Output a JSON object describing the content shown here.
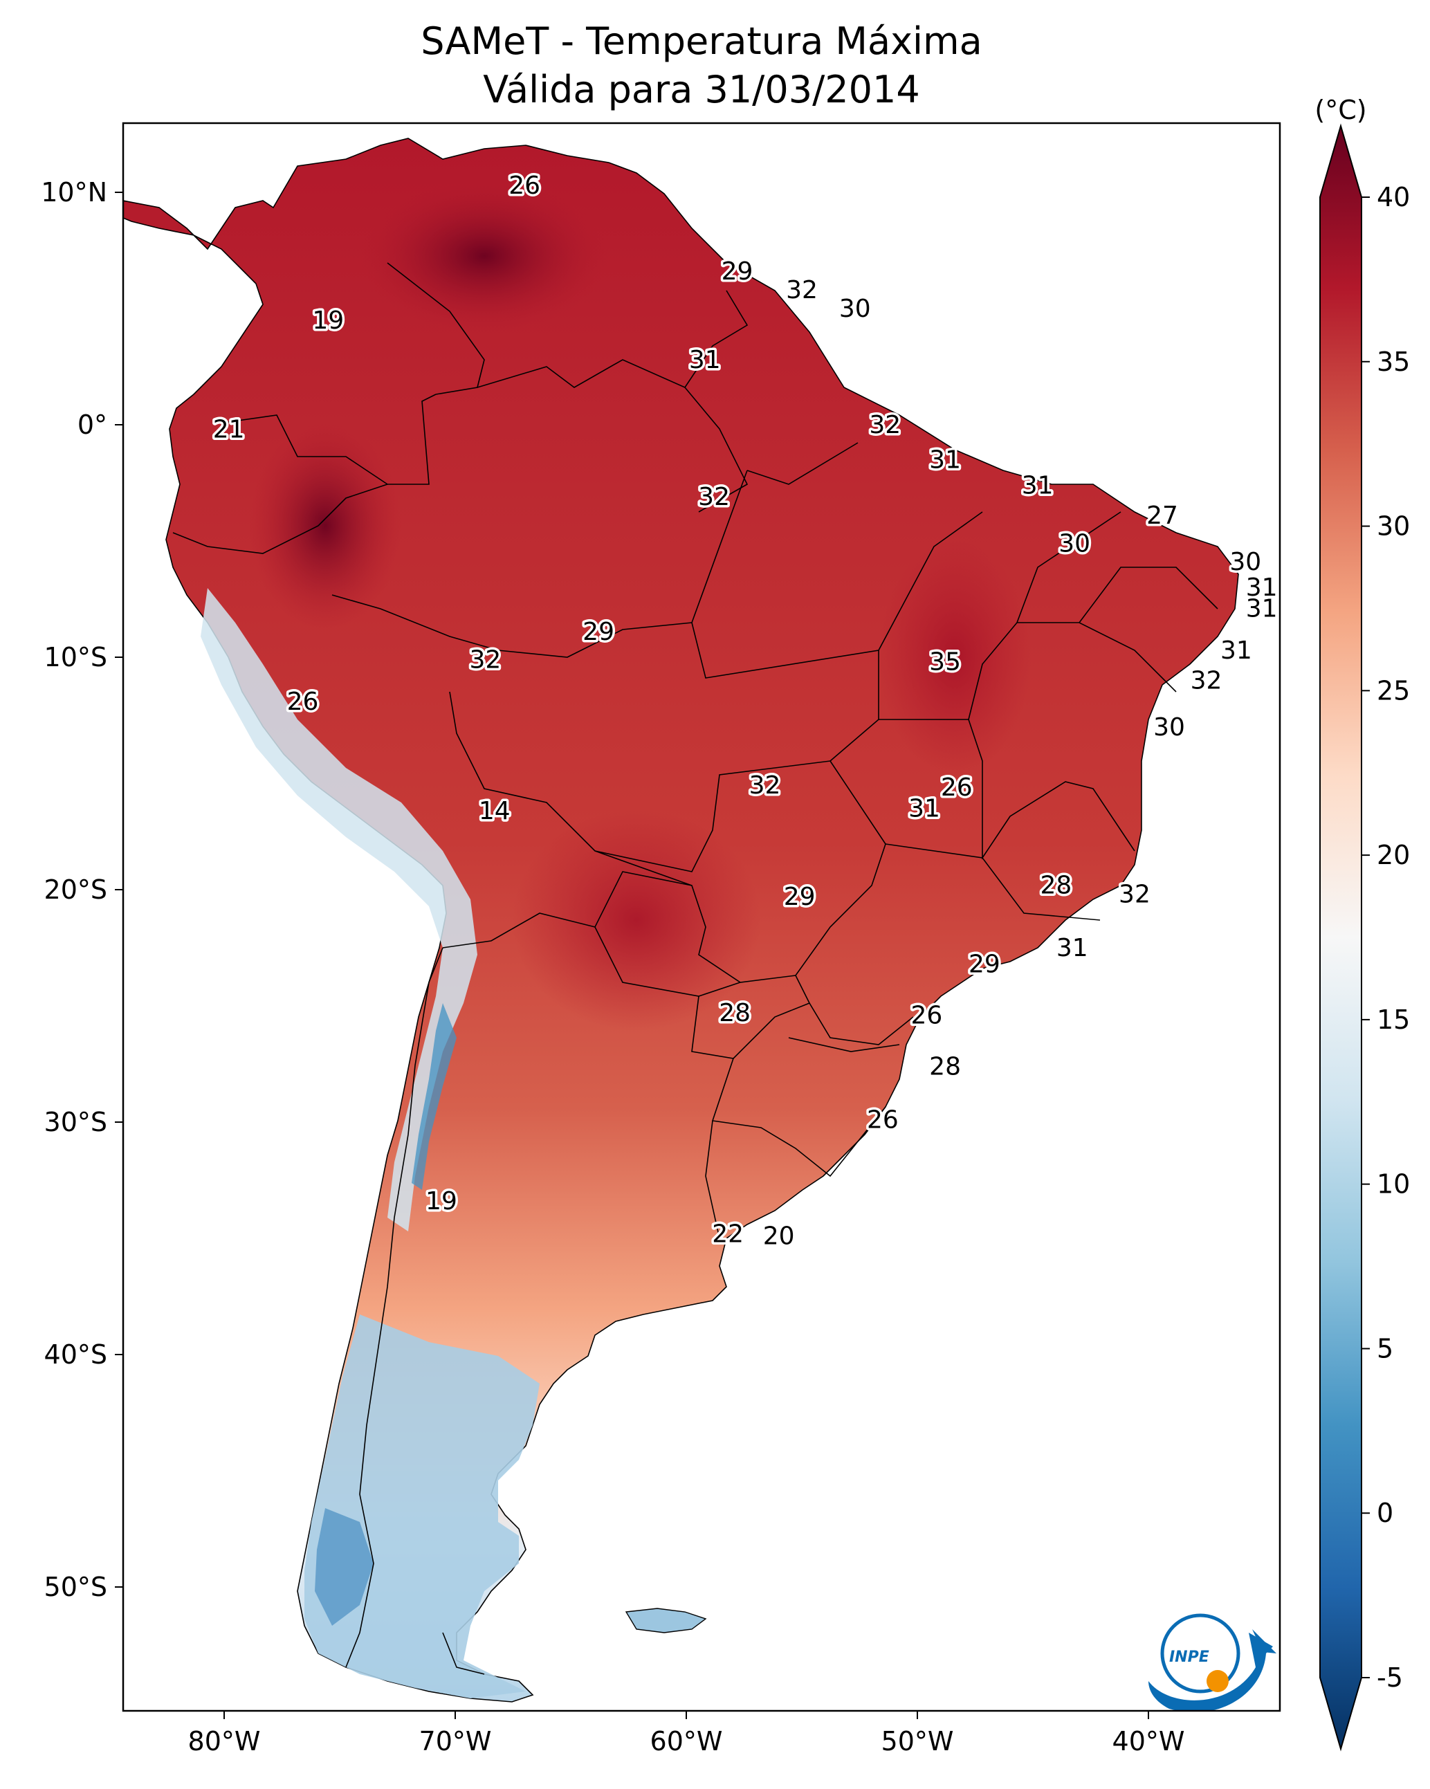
{
  "title": {
    "line1": "SAMeT - Temperatura Máxima",
    "line2": "Válida para 31/03/2014"
  },
  "colorbar": {
    "unit": "(°C)",
    "min": -5,
    "max": 40,
    "ticks": [
      "40",
      "35",
      "30",
      "25",
      "20",
      "15",
      "10",
      "5",
      "0",
      "-5"
    ],
    "colormap": "RdBu_r",
    "colors": [
      "#053061",
      "#2166ac",
      "#4393c3",
      "#92c5de",
      "#d1e5f0",
      "#f7f7f7",
      "#fddbc7",
      "#f4a582",
      "#d6604d",
      "#b2182b",
      "#67001f"
    ]
  },
  "axes": {
    "lat_ticks": [
      "10°N",
      "0°",
      "10°S",
      "20°S",
      "30°S",
      "40°S",
      "50°S"
    ],
    "lon_ticks": [
      "80°W",
      "70°W",
      "60°W",
      "50°W",
      "40°W"
    ]
  },
  "logo": {
    "text": "INPE",
    "colors": {
      "blue": "#0a6cb4",
      "orange": "#f39200"
    }
  },
  "map_labels": [
    {
      "value": "26",
      "lon": -67.0,
      "lat": 10.3
    },
    {
      "value": "29",
      "lon": -57.8,
      "lat": 6.6
    },
    {
      "value": "32",
      "lon": -55.0,
      "lat": 5.8
    },
    {
      "value": "30",
      "lon": -52.7,
      "lat": 5.0
    },
    {
      "value": "19",
      "lon": -75.5,
      "lat": 4.5
    },
    {
      "value": "31",
      "lon": -59.2,
      "lat": 2.8
    },
    {
      "value": "21",
      "lon": -79.8,
      "lat": -0.2
    },
    {
      "value": "32",
      "lon": -51.4,
      "lat": 0.0
    },
    {
      "value": "31",
      "lon": -48.8,
      "lat": -1.5
    },
    {
      "value": "32",
      "lon": -58.8,
      "lat": -3.1
    },
    {
      "value": "31",
      "lon": -44.8,
      "lat": -2.6
    },
    {
      "value": "27",
      "lon": -39.4,
      "lat": -3.9
    },
    {
      "value": "30",
      "lon": -43.2,
      "lat": -5.1
    },
    {
      "value": "30",
      "lon": -35.8,
      "lat": -5.9
    },
    {
      "value": "31",
      "lon": -35.1,
      "lat": -7.0
    },
    {
      "value": "31",
      "lon": -35.1,
      "lat": -7.9
    },
    {
      "value": "29",
      "lon": -63.8,
      "lat": -8.9
    },
    {
      "value": "32",
      "lon": -68.7,
      "lat": -10.1
    },
    {
      "value": "35",
      "lon": -48.8,
      "lat": -10.2
    },
    {
      "value": "31",
      "lon": -36.2,
      "lat": -9.7
    },
    {
      "value": "32",
      "lon": -37.5,
      "lat": -11.0
    },
    {
      "value": "26",
      "lon": -76.6,
      "lat": -11.9
    },
    {
      "value": "30",
      "lon": -39.1,
      "lat": -13.0
    },
    {
      "value": "26",
      "lon": -48.3,
      "lat": -15.6
    },
    {
      "value": "32",
      "lon": -56.6,
      "lat": -15.5
    },
    {
      "value": "31",
      "lon": -49.7,
      "lat": -16.5
    },
    {
      "value": "14",
      "lon": -68.3,
      "lat": -16.6
    },
    {
      "value": "28",
      "lon": -44.0,
      "lat": -19.8
    },
    {
      "value": "32",
      "lon": -40.6,
      "lat": -20.2
    },
    {
      "value": "29",
      "lon": -55.1,
      "lat": -20.3
    },
    {
      "value": "31",
      "lon": -43.3,
      "lat": -22.5
    },
    {
      "value": "29",
      "lon": -47.1,
      "lat": -23.2
    },
    {
      "value": "26",
      "lon": -49.6,
      "lat": -25.4
    },
    {
      "value": "28",
      "lon": -57.9,
      "lat": -25.3
    },
    {
      "value": "28",
      "lon": -48.8,
      "lat": -27.6
    },
    {
      "value": "26",
      "lon": -51.5,
      "lat": -29.9
    },
    {
      "value": "19",
      "lon": -70.6,
      "lat": -33.4
    },
    {
      "value": "22",
      "lon": -58.2,
      "lat": -34.8
    },
    {
      "value": "20",
      "lon": -56.0,
      "lat": -34.9
    }
  ]
}
